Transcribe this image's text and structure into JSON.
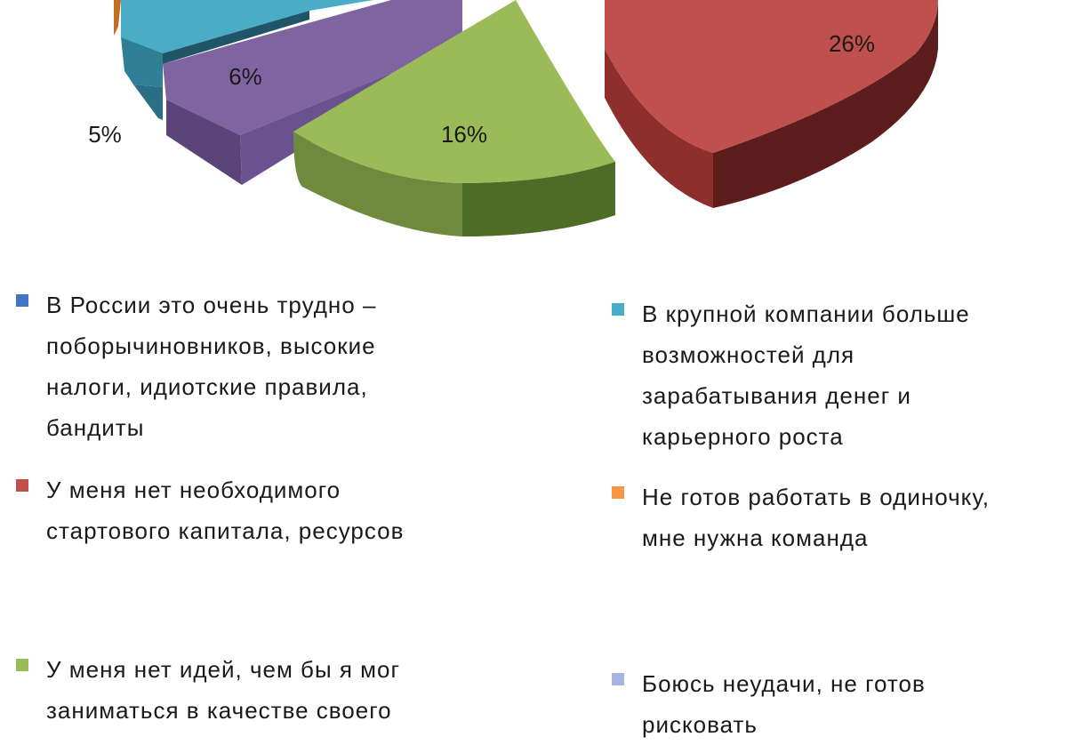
{
  "chart_data": {
    "type": "pie",
    "title": "",
    "slices": [
      {
        "label": "В России это очень трудно – поборы чиновников, высокие налоги, идиотские правила, бандиты",
        "value": null,
        "color": "#4472c4"
      },
      {
        "label": "У меня нет необходимого стартового капитала, ресурсов",
        "value": 26,
        "value_label": "26%",
        "color": "#c0504d"
      },
      {
        "label": "У меня нет идей, чем бы я мог заниматься в качестве своего",
        "value": 16,
        "value_label": "16%",
        "color": "#9bbb59"
      },
      {
        "label": "",
        "value": 6,
        "value_label": "6%",
        "color": "#8064a2"
      },
      {
        "label": "В крупной компании больше возможностей для зарабатывания денег и карьерного роста",
        "value": null,
        "color": "#4bacc6"
      },
      {
        "label": "Не готов работать в одиночку, мне нужна команда",
        "value": 5,
        "value_label": "5%",
        "color": "#f79646"
      },
      {
        "label": "Боюсь неудачи, не готов рисковать",
        "value": null,
        "color": "#a5b5e0"
      }
    ],
    "legend": {
      "position": "bottom",
      "left": [
        {
          "color": "#4472c4",
          "lines": [
            "В России это очень трудно –",
            "поборычиновников,  высокие",
            "налоги, идиотские правила,",
            "бандиты"
          ]
        },
        {
          "color": "#c0504d",
          "lines": [
            "У меня нет необходимого",
            "стартового капитала,  ресурсов"
          ]
        },
        {
          "color": "#9bbb59",
          "lines": [
            "У меня нет идей, чем бы я мог",
            "заниматься в качестве своего"
          ]
        }
      ],
      "right": [
        {
          "color": "#4bacc6",
          "lines": [
            "В крупной компании больше",
            "возможностей для",
            "зарабатывания денег и",
            "карьерного роста"
          ]
        },
        {
          "color": "#f79646",
          "lines": [
            "Не готов работать в одиночку,",
            "мне нужна команда"
          ]
        },
        {
          "color": "#a5b5e0",
          "lines": [
            "Боюсь неудачи,  не готов",
            "рисковать"
          ]
        }
      ]
    }
  }
}
